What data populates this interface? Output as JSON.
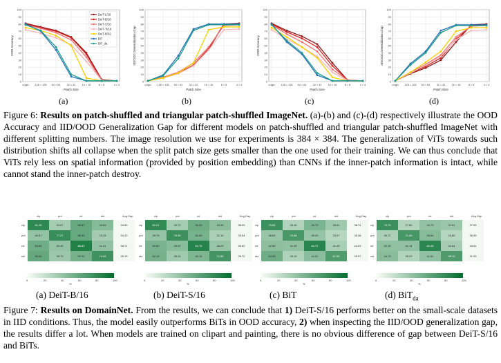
{
  "legend": [
    "DeiT-L/16",
    "DeiT-B/16",
    "DeiT-S/16",
    "DeiT-Ti/16",
    "DeiT-B/32",
    "BiT",
    "BiT_da"
  ],
  "colors": {
    "DeiT-L/16": "#8b1a1a",
    "DeiT-B/16": "#d42020",
    "DeiT-S/16": "#ee7070",
    "DeiT-Ti/16": "#f4b8b8",
    "DeiT-B/32": "#f4d000",
    "BiT": "#1f6fb5",
    "BiT_da": "#1f9a8a"
  },
  "chart_data": [
    {
      "id": "a",
      "type": "line",
      "ylabel": "OOD Accuracy",
      "xlabel": "Patch Size",
      "ylim": [
        0,
        100
      ],
      "categories": [
        "origin",
        "128 × 128",
        "64 × 64",
        "32 × 32",
        "16 × 16",
        "8 × 8",
        "4 × 4"
      ],
      "yticks": [
        0,
        10,
        20,
        30,
        40,
        50,
        60,
        70,
        80,
        90,
        100
      ],
      "series": [
        {
          "name": "DeiT-L/16",
          "values": [
            81,
            76,
            71,
            62,
            40,
            3,
            1
          ]
        },
        {
          "name": "DeiT-B/16",
          "values": [
            80,
            75,
            70,
            61,
            38,
            2,
            1
          ]
        },
        {
          "name": "DeiT-S/16",
          "values": [
            79,
            74,
            68,
            58,
            34,
            2,
            1
          ]
        },
        {
          "name": "DeiT-Ti/16",
          "values": [
            72,
            67,
            61,
            51,
            28,
            2,
            1
          ]
        },
        {
          "name": "DeiT-B/32",
          "values": [
            75,
            71,
            64,
            50,
            5,
            1,
            1
          ]
        },
        {
          "name": "BiT",
          "values": [
            80,
            70,
            44,
            7,
            1,
            1,
            1
          ]
        },
        {
          "name": "BiT_da",
          "values": [
            79,
            71,
            48,
            10,
            1,
            1,
            1
          ]
        }
      ]
    },
    {
      "id": "b",
      "type": "line",
      "ylabel": "IID/OOD Generalization Gap",
      "xlabel": "Patch Size",
      "ylim": [
        0,
        100
      ],
      "categories": [
        "origin",
        "128 × 128",
        "64 × 64",
        "32 × 32",
        "16 × 16",
        "8 × 8",
        "4 × 4"
      ],
      "yticks": [
        0,
        10,
        20,
        30,
        40,
        50,
        60,
        70,
        80,
        90,
        100
      ],
      "series": [
        {
          "name": "DeiT-L/16",
          "values": [
            1,
            5,
            12,
            22,
            45,
            80,
            81
          ]
        },
        {
          "name": "DeiT-B/16",
          "values": [
            1,
            6,
            12,
            23,
            46,
            80,
            80
          ]
        },
        {
          "name": "DeiT-S/16",
          "values": [
            1,
            6,
            13,
            26,
            48,
            78,
            79
          ]
        },
        {
          "name": "DeiT-Ti/16",
          "values": [
            1,
            5,
            11,
            22,
            44,
            72,
            73
          ]
        },
        {
          "name": "DeiT-B/32",
          "values": [
            1,
            5,
            12,
            26,
            72,
            76,
            76
          ]
        },
        {
          "name": "BiT",
          "values": [
            1,
            9,
            36,
            73,
            80,
            80,
            80
          ]
        },
        {
          "name": "BiT_da",
          "values": [
            1,
            8,
            32,
            71,
            79,
            79,
            79
          ]
        }
      ]
    },
    {
      "id": "c",
      "type": "line",
      "ylabel": "OOD Accuracy",
      "xlabel": "Patch Size",
      "ylim": [
        0,
        100
      ],
      "categories": [
        "origin",
        "128 × 128",
        "64 × 64",
        "32 × 32",
        "16 × 16",
        "8 × 8",
        "4 × 4"
      ],
      "yticks": [
        0,
        10,
        20,
        30,
        40,
        50,
        60,
        70,
        80,
        90,
        100
      ],
      "series": [
        {
          "name": "DeiT-L/16",
          "values": [
            81,
            71,
            63,
            52,
            26,
            2,
            1
          ]
        },
        {
          "name": "DeiT-B/16",
          "values": [
            80,
            69,
            60,
            48,
            22,
            2,
            1
          ]
        },
        {
          "name": "DeiT-S/16",
          "values": [
            79,
            66,
            55,
            42,
            17,
            2,
            1
          ]
        },
        {
          "name": "DeiT-Ti/16",
          "values": [
            72,
            59,
            48,
            35,
            13,
            1,
            1
          ]
        },
        {
          "name": "DeiT-B/32",
          "values": [
            75,
            62,
            48,
            33,
            6,
            1,
            1
          ]
        },
        {
          "name": "BiT",
          "values": [
            80,
            55,
            38,
            9,
            1,
            1,
            1
          ]
        },
        {
          "name": "BiT_da",
          "values": [
            79,
            57,
            40,
            12,
            1,
            1,
            1
          ]
        }
      ]
    },
    {
      "id": "d",
      "type": "line",
      "ylabel": "IID/OOD Generalization Gap",
      "xlabel": "Patch Size",
      "ylim": [
        0,
        100
      ],
      "categories": [
        "origin",
        "128 × 128",
        "64 × 64",
        "32 × 32",
        "16 × 16",
        "8 × 8",
        "4 × 4"
      ],
      "yticks": [
        0,
        10,
        20,
        30,
        40,
        50,
        60,
        70,
        80,
        90,
        100
      ],
      "series": [
        {
          "name": "DeiT-L/16",
          "values": [
            1,
            11,
            19,
            30,
            55,
            79,
            80
          ]
        },
        {
          "name": "DeiT-B/16",
          "values": [
            1,
            12,
            21,
            33,
            59,
            78,
            79
          ]
        },
        {
          "name": "DeiT-S/16",
          "values": [
            1,
            13,
            24,
            37,
            62,
            77,
            78
          ]
        },
        {
          "name": "DeiT-Ti/16",
          "values": [
            1,
            12,
            23,
            35,
            58,
            71,
            72
          ]
        },
        {
          "name": "DeiT-B/32",
          "values": [
            1,
            13,
            27,
            42,
            70,
            75,
            75
          ]
        },
        {
          "name": "BiT",
          "values": [
            1,
            25,
            42,
            71,
            79,
            79,
            79
          ]
        },
        {
          "name": "BiT_da",
          "values": [
            1,
            23,
            40,
            68,
            78,
            78,
            78
          ]
        }
      ]
    },
    {
      "id": "hm-a",
      "type": "heatmap",
      "label": "(a) DeiT-B/16",
      "rows": [
        "clp",
        "pnt",
        "rel",
        "skt"
      ],
      "cols": [
        "clp",
        "pnt",
        "rel",
        "skt",
        "Avg.Gap"
      ],
      "values": [
        [
          "81.39",
          "33.67",
          "58.87",
          "45.69",
          "34.50"
        ],
        [
          "40.37",
          "77.27",
          "58.33",
          "33.28",
          "34.20"
        ],
        [
          "54.64",
          "40.45",
          "86.83",
          "41.31",
          "38.71"
        ],
        [
          "59.04",
          "36.75",
          "52.12",
          "74.69",
          "25.19"
        ]
      ],
      "colorbar": {
        "min": 0,
        "max": 100,
        "ticks": [
          "0",
          "20",
          "40",
          "60",
          "80",
          "100"
        ],
        "label": "%"
      }
    },
    {
      "id": "hm-b",
      "type": "heatmap",
      "label": "(b) DeiT-S/16",
      "rows": [
        "clp",
        "pnt",
        "rel",
        "skt"
      ],
      "cols": [
        "clp",
        "pnt",
        "rel",
        "skt",
        "Avg.Gap"
      ],
      "values": [
        [
          "80.21",
          "33.72",
          "55.25",
          "43.39",
          "36.09"
        ],
        [
          "39.79",
          "75.30",
          "52.09",
          "31.10",
          "35.54"
        ],
        [
          "50.80",
          "45.02",
          "84.76",
          "38.29",
          "39.52"
        ],
        [
          "52.15",
          "35.24",
          "49.15",
          "71.90",
          "26.72"
        ]
      ],
      "colorbar": {
        "min": 0,
        "max": 100,
        "ticks": [
          "0",
          "20",
          "40",
          "60",
          "80",
          "100"
        ],
        "label": "%"
      }
    },
    {
      "id": "hm-c",
      "type": "heatmap",
      "label": "(c) BiT",
      "rows": [
        "clp",
        "pnt",
        "rel",
        "skt"
      ],
      "cols": [
        "clp",
        "pnt",
        "rel",
        "skt",
        "Avg.Gap"
      ],
      "values": [
        [
          "75.65",
          "28.45",
          "49.70",
          "35.81",
          "38.74"
        ],
        [
          "38.63",
          "70.68",
          "39.20",
          "25.67",
          "35.38"
        ],
        [
          "42.85",
          "41.05",
          "83.37",
          "31.43",
          "44.93"
        ],
        [
          "54.95",
          "29.19",
          "44.02",
          "67.99",
          "25.97"
        ]
      ],
      "colorbar": {
        "min": 0,
        "max": 100,
        "ticks": [
          "0",
          "20",
          "40",
          "60",
          "80",
          "100"
        ],
        "label": "%"
      }
    },
    {
      "id": "hm-d",
      "type": "heatmap",
      "label": "(d) BiT",
      "label_sub": "da",
      "rows": [
        "clp",
        "pnt",
        "rel",
        "skt"
      ],
      "cols": [
        "clp",
        "pnt",
        "rel",
        "skt",
        "Avg.Gap"
      ],
      "values": [
        [
          "75.79",
          "27.85",
          "40.73",
          "37.81",
          "37.93"
        ],
        [
          "30.72",
          "71.26",
          "45.54",
          "26.80",
          "36.09"
        ],
        [
          "42.15",
          "41.14",
          "82.48",
          "32.64",
          "43.01"
        ],
        [
          "44.73",
          "28.23",
          "41.51",
          "68.10",
          "31.03"
        ]
      ],
      "colorbar": {
        "min": 0,
        "max": 100,
        "ticks": [
          "0",
          "20",
          "40",
          "60",
          "80",
          "100"
        ],
        "label": "%"
      }
    }
  ],
  "sublabels": [
    "(a)",
    "(b)",
    "(c)",
    "(d)"
  ],
  "fig6": {
    "prefix": "Figure 6: ",
    "bold": "Results on patch-shuffled and triangular patch-shuffled ImageNet.",
    "text": " (a)-(b) and (c)-(d) respectively illustrate the OOD Accuracy and IID/OOD Generalization Gap for different models on patch-shuffled and triangular patch-shuffled ImageNet with different splitting numbers. The image resolution we use for experiments is 384 × 384. The generalization of ViTs towards such distribution shifts all collapse when the split patch size gets smaller than the one used for their training. We can thus conclude that ViTs rely less on spatial information (provided by position embedding) than CNNs if the inner-patch information is intact, while cannot stand the inner-patch destroy."
  },
  "fig7": {
    "prefix": "Figure 7: ",
    "bold": "Results on DomainNet.",
    "text1": " From the results, we can conclude that ",
    "b1": "1)",
    "text2": " DeiT-S/16 performs better on the small-scale datasets in IID conditions. Thus, the model easily outperforms BiTs in OOD accuracy, ",
    "b2": "2)",
    "text3": " when inspecting the IID/OOD generalization gap, the results differ a lot. When models are trained on clipart and painting, there is no obvious difference of gap between DeiT-S/16 and BiTs."
  }
}
